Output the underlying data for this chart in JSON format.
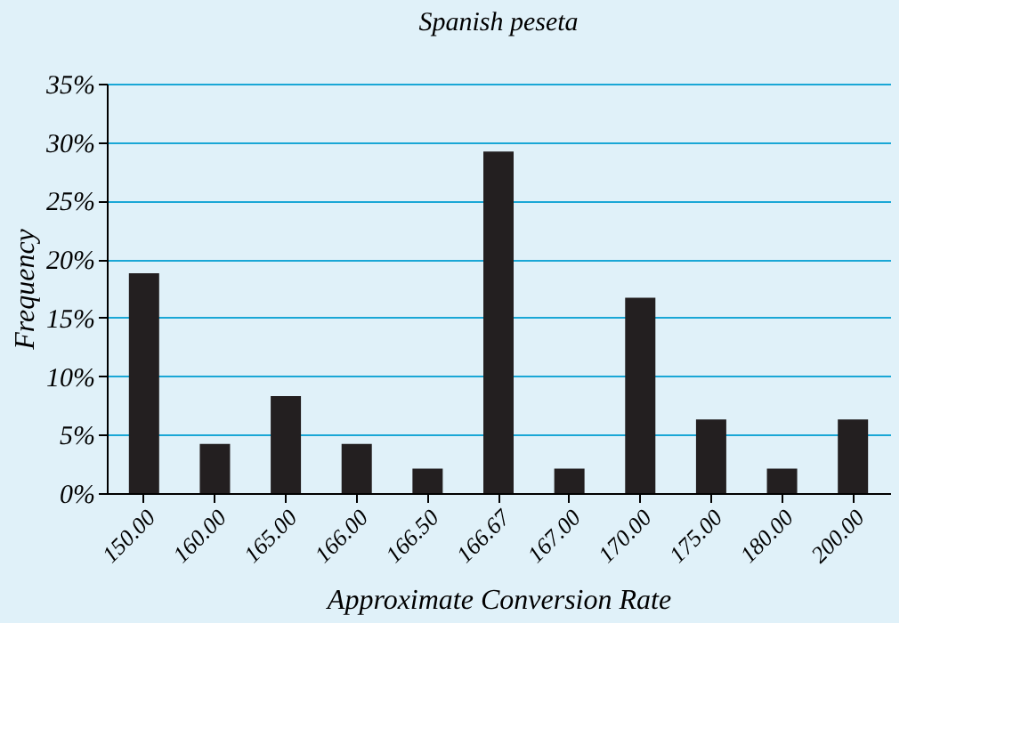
{
  "chart_data": {
    "type": "bar",
    "title": "Spanish peseta",
    "xlabel": "Approximate Conversion Rate",
    "ylabel": "Frequency",
    "categories": [
      "150.00",
      "160.00",
      "165.00",
      "166.00",
      "166.50",
      "166.67",
      "167.00",
      "170.00",
      "175.00",
      "180.00",
      "200.00"
    ],
    "values": [
      18.8,
      4.2,
      8.3,
      4.2,
      2.1,
      29.2,
      2.1,
      16.7,
      6.3,
      2.1,
      6.3
    ],
    "color": "#231f20",
    "ylim": [
      0,
      35
    ],
    "yticks": [
      {
        "value": 0,
        "label": "0%"
      },
      {
        "value": 5,
        "label": "5%"
      },
      {
        "value": 10,
        "label": "10%"
      },
      {
        "value": 15,
        "label": "15%"
      },
      {
        "value": 20,
        "label": "20%"
      },
      {
        "value": 25,
        "label": "25%"
      },
      {
        "value": 30,
        "label": "30%"
      },
      {
        "value": 35,
        "label": "35%"
      }
    ],
    "grid": "y"
  }
}
